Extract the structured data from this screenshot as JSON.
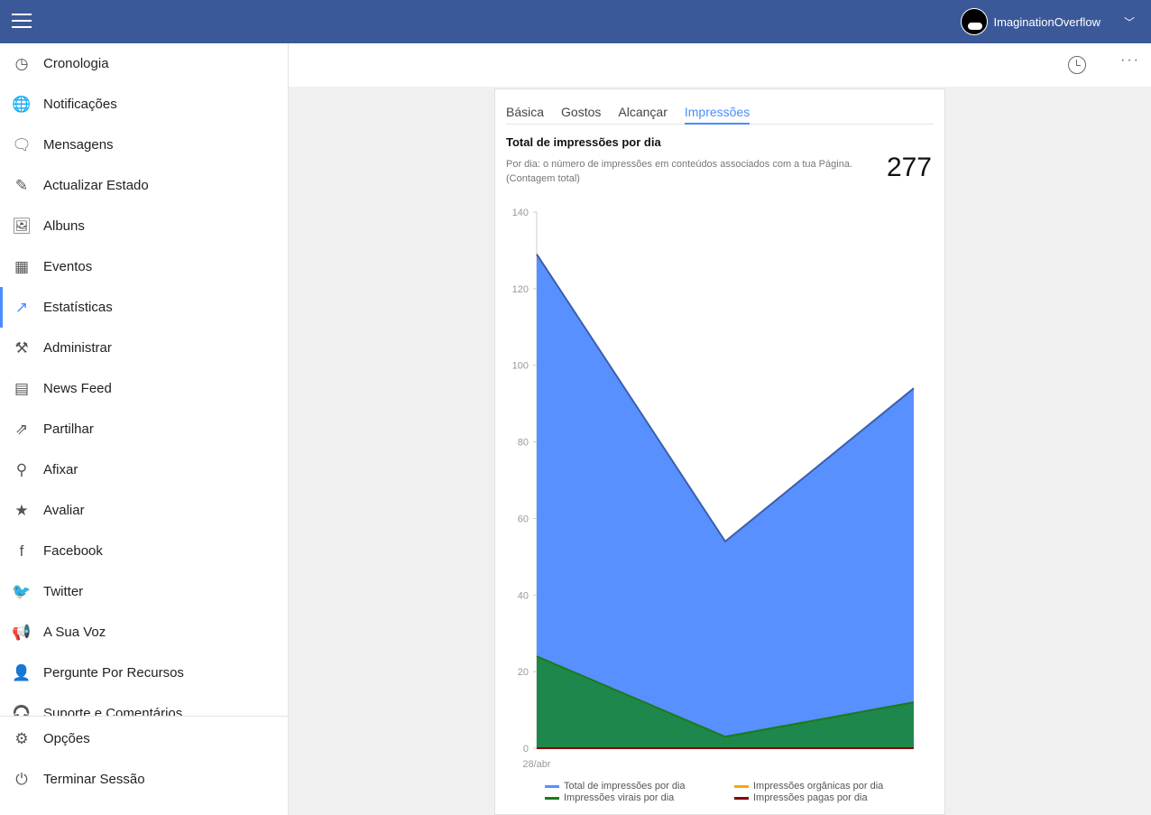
{
  "header": {
    "username": "ImaginationOverflow"
  },
  "sidebar": {
    "items": [
      {
        "label": "Cronologia",
        "icon": "timeline-icon",
        "glyph": "◷"
      },
      {
        "label": "Notificações",
        "icon": "globe-icon",
        "glyph": "🌐"
      },
      {
        "label": "Mensagens",
        "icon": "chat-icon",
        "glyph": "🗨"
      },
      {
        "label": "Actualizar Estado",
        "icon": "edit-icon",
        "glyph": "✎"
      },
      {
        "label": "Albuns",
        "icon": "image-icon",
        "glyph": "🖼"
      },
      {
        "label": "Eventos",
        "icon": "calendar-icon",
        "glyph": "▦"
      },
      {
        "label": "Estatísticas",
        "icon": "trending-icon",
        "glyph": "↗"
      },
      {
        "label": "Administrar",
        "icon": "tools-icon",
        "glyph": "⚒"
      },
      {
        "label": "News Feed",
        "icon": "news-icon",
        "glyph": "▤"
      },
      {
        "label": "Partilhar",
        "icon": "share-icon",
        "glyph": "⇗"
      },
      {
        "label": "Afixar",
        "icon": "pin-icon",
        "glyph": "⚲"
      },
      {
        "label": "Avaliar",
        "icon": "star-icon",
        "glyph": "★"
      },
      {
        "label": "Facebook",
        "icon": "facebook-icon",
        "glyph": "f"
      },
      {
        "label": "Twitter",
        "icon": "twitter-icon",
        "glyph": "🐦"
      },
      {
        "label": "A Sua Voz",
        "icon": "megaphone-icon",
        "glyph": "📢"
      },
      {
        "label": "Pergunte Por Recursos",
        "icon": "person-question-icon",
        "glyph": "👤"
      },
      {
        "label": "Suporte e Comentários",
        "icon": "headset-icon",
        "glyph": "🎧"
      }
    ],
    "active": "Estatísticas",
    "bottom": [
      {
        "label": "Opções",
        "icon": "gear-icon",
        "glyph": "⚙"
      },
      {
        "label": "Terminar Sessão",
        "icon": "power-icon",
        "glyph": "⏻"
      }
    ]
  },
  "card": {
    "tabs": [
      "Básica",
      "Gostos",
      "Alcançar",
      "Impressões"
    ],
    "active_tab": "Impressões",
    "title": "Total de impressões por dia",
    "description": "Por dia: o número de impressões em conteúdos associados com a tua Página. (Contagem total)",
    "total": "277"
  },
  "chart_data": {
    "type": "area",
    "x": [
      "28/abr",
      "",
      ""
    ],
    "ylim": [
      0,
      140
    ],
    "yticks": [
      0,
      20,
      40,
      60,
      80,
      100,
      120,
      140
    ],
    "series": [
      {
        "name": "Total de impressões por dia",
        "color": "#5890ff",
        "values": [
          129,
          54,
          94
        ]
      },
      {
        "name": "Impressões orgânicas por dia",
        "color": "#f7a800",
        "values": [
          0,
          0,
          0
        ]
      },
      {
        "name": "Impressões virais por dia",
        "color": "#1b7a1b",
        "values": [
          24,
          3,
          12
        ]
      },
      {
        "name": "Impressões pagas  por dia",
        "color": "#8b0000",
        "values": [
          0,
          0,
          0
        ]
      }
    ],
    "legend": "bottom"
  },
  "colors": {
    "header": "#3b5998",
    "accent": "#4a8cff"
  }
}
